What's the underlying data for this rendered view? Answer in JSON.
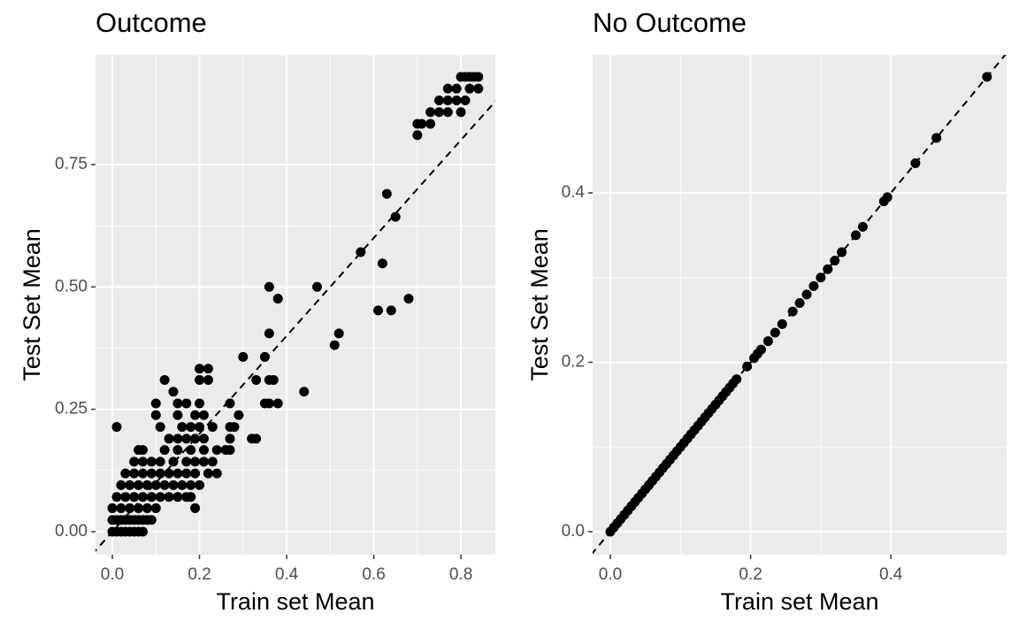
{
  "chart_data": [
    {
      "type": "scatter",
      "title": "Outcome",
      "x_label": "Train set Mean",
      "y_label": "Test Set Mean",
      "color": "#000000",
      "grid": true,
      "identity_line": true,
      "xlim": [
        -0.0386,
        0.879
      ],
      "ylim": [
        -0.047,
        0.974
      ],
      "xticks": [
        {
          "value": 0,
          "label": "0.0"
        },
        0.2,
        0.4,
        0.6,
        0.8
      ],
      "yticks": [
        {
          "value": 0,
          "label": "0.00"
        },
        0.25,
        {
          "value": 0.5,
          "label": "0.50"
        },
        0.75
      ],
      "x": [
        0,
        0.01,
        0.02,
        0.03,
        0.04,
        0.05,
        0.06,
        0.07,
        0,
        0.01,
        0.02,
        0.03,
        0.04,
        0.05,
        0.06,
        0.07,
        0.08,
        0.09,
        0,
        0.02,
        0.04,
        0.06,
        0.08,
        0.1,
        0.19,
        0.01,
        0.03,
        0.05,
        0.07,
        0.09,
        0.11,
        0.13,
        0.15,
        0.17,
        0.18,
        0.02,
        0.04,
        0.06,
        0.08,
        0.1,
        0.12,
        0.14,
        0.16,
        0.18,
        0.2,
        0.03,
        0.05,
        0.07,
        0.09,
        0.11,
        0.13,
        0.15,
        0.17,
        0.19,
        0.22,
        0.24,
        0.05,
        0.07,
        0.09,
        0.11,
        0.14,
        0.17,
        0.19,
        0.21,
        0.23,
        0.06,
        0.07,
        0.12,
        0.15,
        0.18,
        0.21,
        0.24,
        0.26,
        0.27,
        0.13,
        0.15,
        0.17,
        0.19,
        0.21,
        0.27,
        0.32,
        0.33,
        0.01,
        0.11,
        0.16,
        0.18,
        0.2,
        0.23,
        0.27,
        0.28,
        0.1,
        0.15,
        0.19,
        0.21,
        0.29,
        0.1,
        0.15,
        0.17,
        0.2,
        0.27,
        0.35,
        0.36,
        0.38,
        0.14,
        0.44,
        0.12,
        0.2,
        0.22,
        0.33,
        0.36,
        0.37,
        0.2,
        0.22,
        0.3,
        0.35,
        0.51,
        0.36,
        0.52,
        0.61,
        0.64,
        0.38,
        0.68,
        0.36,
        0.47,
        0.62,
        0.57,
        0.65,
        0.63,
        0.7,
        0.7,
        0.71,
        0.73,
        0.73,
        0.75,
        0.77,
        0.8,
        0.75,
        0.77,
        0.79,
        0.81,
        0.77,
        0.79,
        0.82,
        0.84,
        0.8,
        0.81,
        0.82,
        0.83,
        0.84
      ],
      "values": [
        0,
        0,
        0,
        0,
        0,
        0,
        0,
        0,
        0.024,
        0.024,
        0.024,
        0.024,
        0.024,
        0.024,
        0.024,
        0.024,
        0.024,
        0.024,
        0.048,
        0.048,
        0.048,
        0.048,
        0.048,
        0.048,
        0.048,
        0.071,
        0.071,
        0.071,
        0.071,
        0.071,
        0.071,
        0.071,
        0.071,
        0.071,
        0.071,
        0.095,
        0.095,
        0.095,
        0.095,
        0.095,
        0.095,
        0.095,
        0.095,
        0.095,
        0.095,
        0.119,
        0.119,
        0.119,
        0.119,
        0.119,
        0.119,
        0.119,
        0.119,
        0.119,
        0.119,
        0.119,
        0.143,
        0.143,
        0.143,
        0.143,
        0.143,
        0.143,
        0.143,
        0.143,
        0.143,
        0.167,
        0.167,
        0.167,
        0.167,
        0.167,
        0.167,
        0.167,
        0.167,
        0.167,
        0.19,
        0.19,
        0.19,
        0.19,
        0.19,
        0.19,
        0.19,
        0.19,
        0.214,
        0.214,
        0.214,
        0.214,
        0.214,
        0.214,
        0.214,
        0.214,
        0.238,
        0.238,
        0.238,
        0.238,
        0.238,
        0.262,
        0.262,
        0.262,
        0.262,
        0.262,
        0.262,
        0.262,
        0.262,
        0.286,
        0.286,
        0.31,
        0.31,
        0.31,
        0.31,
        0.31,
        0.31,
        0.333,
        0.333,
        0.357,
        0.357,
        0.381,
        0.405,
        0.405,
        0.452,
        0.452,
        0.476,
        0.476,
        0.5,
        0.5,
        0.548,
        0.571,
        0.643,
        0.69,
        0.81,
        0.833,
        0.833,
        0.833,
        0.857,
        0.857,
        0.857,
        0.857,
        0.881,
        0.881,
        0.881,
        0.881,
        0.905,
        0.905,
        0.905,
        0.905,
        0.929,
        0.929,
        0.929,
        0.929,
        0.929
      ]
    },
    {
      "type": "scatter",
      "title": "No Outcome",
      "x_label": "Train set Mean",
      "y_label": "Test Set Mean",
      "color": "#000000",
      "grid": true,
      "identity_line": true,
      "xlim": [
        -0.0252,
        0.565
      ],
      "ylim": [
        -0.0272,
        0.563
      ],
      "xticks": [
        {
          "value": 0,
          "label": "0.0"
        },
        0.2,
        0.4
      ],
      "yticks": [
        {
          "value": 0,
          "label": "0.0"
        },
        0.2,
        0.4
      ],
      "x": [
        0,
        0.005,
        0.01,
        0.015,
        0.02,
        0.025,
        0.03,
        0.035,
        0.04,
        0.045,
        0.05,
        0.055,
        0.06,
        0.065,
        0.07,
        0.075,
        0.08,
        0.085,
        0.09,
        0.095,
        0.1,
        0.105,
        0.11,
        0.115,
        0.12,
        0.125,
        0.13,
        0.135,
        0.14,
        0.145,
        0.15,
        0.155,
        0.16,
        0.165,
        0.17,
        0.175,
        0.18,
        0.195,
        0.205,
        0.21,
        0.215,
        0.225,
        0.235,
        0.245,
        0.26,
        0.27,
        0.28,
        0.29,
        0.3,
        0.31,
        0.32,
        0.33,
        0.35,
        0.36,
        0.39,
        0.395,
        0.435,
        0.465,
        0.537
      ],
      "values": [
        0,
        0.005,
        0.01,
        0.015,
        0.02,
        0.025,
        0.03,
        0.035,
        0.04,
        0.045,
        0.05,
        0.055,
        0.06,
        0.065,
        0.07,
        0.075,
        0.08,
        0.085,
        0.09,
        0.095,
        0.1,
        0.105,
        0.11,
        0.115,
        0.12,
        0.125,
        0.13,
        0.135,
        0.14,
        0.145,
        0.15,
        0.155,
        0.16,
        0.165,
        0.17,
        0.175,
        0.18,
        0.195,
        0.205,
        0.21,
        0.215,
        0.225,
        0.235,
        0.245,
        0.26,
        0.27,
        0.28,
        0.29,
        0.3,
        0.31,
        0.32,
        0.33,
        0.35,
        0.36,
        0.39,
        0.395,
        0.435,
        0.465,
        0.537
      ]
    }
  ]
}
